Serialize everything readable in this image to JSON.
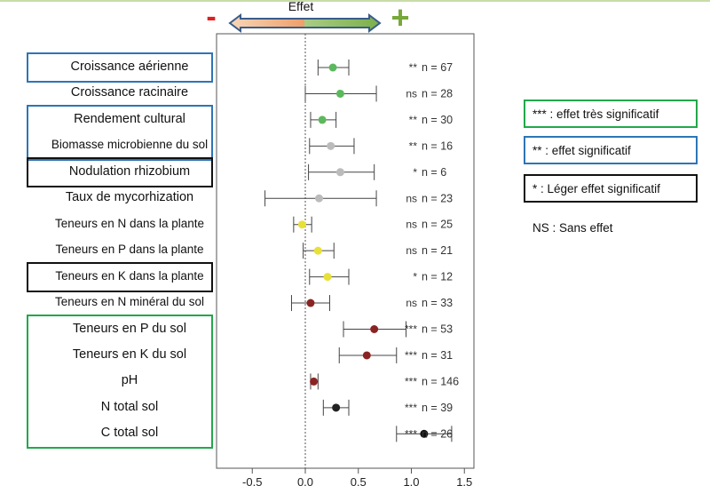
{
  "header": {
    "effect_label": "Effet",
    "minus_sign": "-",
    "plus_sign": "+"
  },
  "chart_data": {
    "type": "scatter",
    "subtype": "forest-plot",
    "title": "Effet",
    "xlabel": "",
    "ylabel": "",
    "xlim": [
      -0.85,
      1.6
    ],
    "xticks": [
      "-0.5",
      "0.0",
      "0.5",
      "1.0",
      "1.5"
    ],
    "xtick_values": [
      -0.5,
      0.0,
      0.5,
      1.0,
      1.5
    ],
    "zero_line": "dotted",
    "rows": [
      {
        "label": "Croissance aérienne",
        "estimate": 0.26,
        "ci": [
          0.12,
          0.41
        ],
        "signif": "**",
        "n": "n = 67",
        "color": "#5cb85c",
        "box": "#2e75b6"
      },
      {
        "label": "Croissance racinaire",
        "estimate": 0.33,
        "ci": [
          0.0,
          0.67
        ],
        "signif": "ns",
        "n": "n = 28",
        "color": "#5cb85c",
        "box": null
      },
      {
        "label": "Rendement cultural",
        "estimate": 0.16,
        "ci": [
          0.05,
          0.29
        ],
        "signif": "**",
        "n": "n = 30",
        "color": "#5cb85c",
        "box": "#2e75b6"
      },
      {
        "label": "Biomasse microbienne du sol",
        "estimate": 0.24,
        "ci": [
          0.04,
          0.46
        ],
        "signif": "**",
        "n": "n = 16",
        "color": "#bbbbbb",
        "box": "#2e75b6"
      },
      {
        "label": "Nodulation rhizobium",
        "estimate": 0.33,
        "ci": [
          0.03,
          0.65
        ],
        "signif": "*",
        "n": "n = 6",
        "color": "#bbbbbb",
        "box": "#111111"
      },
      {
        "label": "Taux de mycorhization",
        "estimate": 0.13,
        "ci": [
          -0.38,
          0.67
        ],
        "signif": "ns",
        "n": "n = 23",
        "color": "#bbbbbb",
        "box": null
      },
      {
        "label": "Teneurs en N dans la plante",
        "estimate": -0.03,
        "ci": [
          -0.11,
          0.06
        ],
        "signif": "ns",
        "n": "n = 25",
        "color": "#e8e038",
        "box": null
      },
      {
        "label": "Teneurs en P dans la plante",
        "estimate": 0.12,
        "ci": [
          -0.02,
          0.27
        ],
        "signif": "ns",
        "n": "n = 21",
        "color": "#e8e038",
        "box": null
      },
      {
        "label": "Teneurs en K dans la plante",
        "estimate": 0.21,
        "ci": [
          0.04,
          0.41
        ],
        "signif": "*",
        "n": "n = 12",
        "color": "#e8e038",
        "box": "#111111"
      },
      {
        "label": "Teneurs en N minéral du sol",
        "estimate": 0.05,
        "ci": [
          -0.13,
          0.23
        ],
        "signif": "ns",
        "n": "n = 33",
        "color": "#8b2323",
        "box": null
      },
      {
        "label": "Teneurs en P du sol",
        "estimate": 0.65,
        "ci": [
          0.36,
          0.95
        ],
        "signif": "***",
        "n": "n = 53",
        "color": "#8b2323",
        "box": "#22a84a"
      },
      {
        "label": "Teneurs en K du sol",
        "estimate": 0.58,
        "ci": [
          0.32,
          0.86
        ],
        "signif": "***",
        "n": "n = 31",
        "color": "#8b2323",
        "box": "#22a84a"
      },
      {
        "label": "pH",
        "estimate": 0.08,
        "ci": [
          0.05,
          0.12
        ],
        "signif": "***",
        "n": "n = 146",
        "color": "#8b2323",
        "box": "#22a84a"
      },
      {
        "label": "N total sol",
        "estimate": 0.29,
        "ci": [
          0.17,
          0.41
        ],
        "signif": "***",
        "n": "n = 39",
        "color": "#222222",
        "box": "#22a84a"
      },
      {
        "label": "C total sol",
        "estimate": 1.12,
        "ci": [
          0.86,
          1.38
        ],
        "signif": "***",
        "n": "n = 26",
        "color": "#111111",
        "box": "#22a84a"
      }
    ],
    "group_boxes": [
      {
        "rows": [
          0
        ],
        "color": "#2e75b6"
      },
      {
        "rows": [
          2,
          3
        ],
        "color": "#2e75b6"
      },
      {
        "rows": [
          4
        ],
        "color": "#111111"
      },
      {
        "rows": [
          8
        ],
        "color": "#111111"
      },
      {
        "rows": [
          10,
          14
        ],
        "color": "#22a84a"
      }
    ]
  },
  "legend": [
    {
      "text": "*** : effet très significatif",
      "border": "#22a84a"
    },
    {
      "text": "** : effet significatif",
      "border": "#2e75b6"
    },
    {
      "text": "* : Léger effet significatif",
      "border": "#111111"
    },
    {
      "text": "NS : Sans effet",
      "border": null
    }
  ]
}
